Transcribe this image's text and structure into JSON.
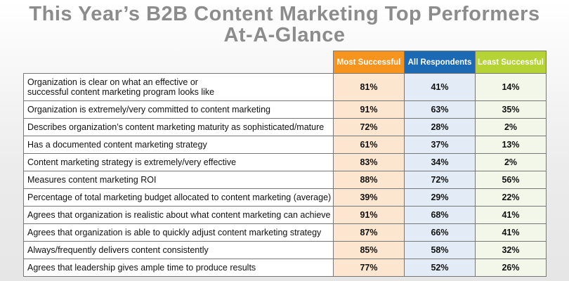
{
  "title_line1": "This Year’s B2B Content Marketing Top Performers",
  "title_line2": "At-A-Glance",
  "columns": [
    {
      "label": "Most Successful",
      "color": "#f7941d"
    },
    {
      "label": "All Respondents",
      "color": "#1b6ab3"
    },
    {
      "label": "Least Successful",
      "color": "#b5d334"
    }
  ],
  "rows": [
    {
      "line1": "Organization is clear on what an effective or",
      "line2": "successful content marketing program looks like",
      "values": [
        "81%",
        "41%",
        "14%"
      ]
    },
    {
      "line1": "Organization is extremely/very committed to content marketing",
      "values": [
        "91%",
        "63%",
        "35%"
      ]
    },
    {
      "line1": "Describes organization’s content marketing maturity as sophisticated/mature",
      "values": [
        "72%",
        "28%",
        "2%"
      ]
    },
    {
      "line1": "Has a documented content marketing strategy",
      "values": [
        "61%",
        "37%",
        "13%"
      ]
    },
    {
      "line1": "Content marketing strategy is extremely/very effective",
      "values": [
        "83%",
        "34%",
        "2%"
      ]
    },
    {
      "line1": "Measures content marketing ROI",
      "values": [
        "88%",
        "72%",
        "56%"
      ]
    },
    {
      "line1": "Percentage of total marketing budget allocated to content marketing (average)",
      "values": [
        "39%",
        "29%",
        "22%"
      ]
    },
    {
      "line1": "Agrees that organization is realistic about what content marketing can achieve",
      "values": [
        "91%",
        "68%",
        "41%"
      ]
    },
    {
      "line1": "Agrees that organization is able to quickly adjust content marketing strategy",
      "values": [
        "87%",
        "66%",
        "41%"
      ]
    },
    {
      "line1": "Always/frequently delivers content consistently",
      "values": [
        "85%",
        "58%",
        "32%"
      ]
    },
    {
      "line1": "Agrees that leadership gives ample time to produce results",
      "values": [
        "77%",
        "52%",
        "26%"
      ]
    }
  ]
}
